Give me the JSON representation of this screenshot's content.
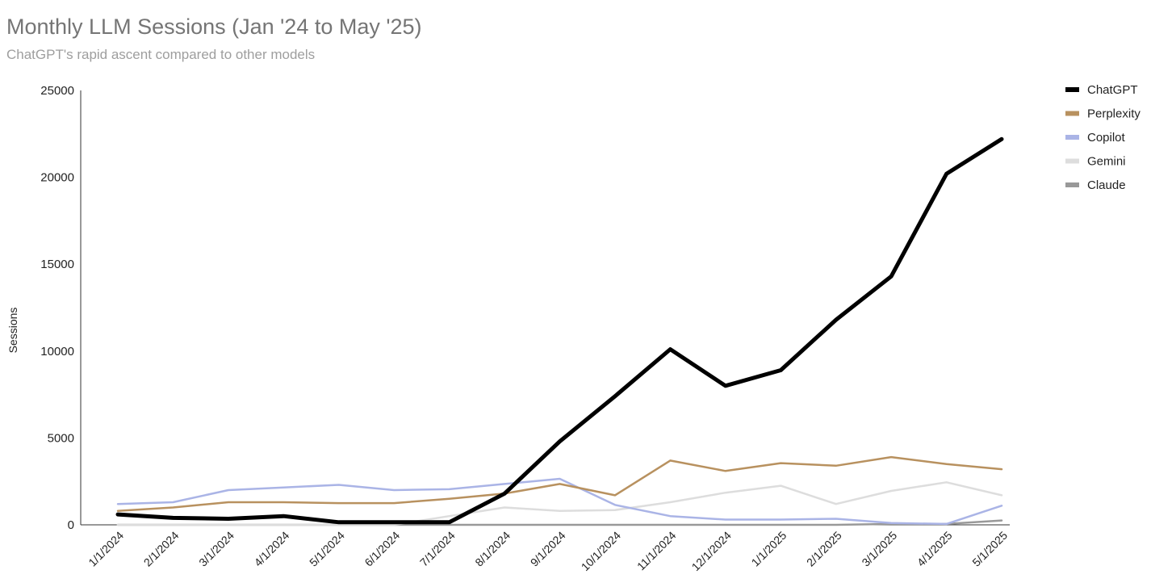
{
  "chart_data": {
    "type": "line",
    "title": "Monthly LLM Sessions (Jan '24 to May '25)",
    "subtitle": "ChatGPT's rapid ascent compared to other models",
    "xlabel": "",
    "ylabel": "Sessions",
    "ylim": [
      0,
      25000
    ],
    "yticks": [
      "0",
      "5000",
      "10000",
      "15000",
      "20000",
      "25000"
    ],
    "legend_position": "right",
    "grid": false,
    "categories": [
      "1/1/2024",
      "2/1/2024",
      "3/1/2024",
      "4/1/2024",
      "5/1/2024",
      "6/1/2024",
      "7/1/2024",
      "8/1/2024",
      "9/1/2024",
      "10/1/2024",
      "11/1/2024",
      "12/1/2024",
      "1/1/2025",
      "2/1/2025",
      "3/1/2025",
      "4/1/2025",
      "5/1/2025"
    ],
    "series": [
      {
        "name": "ChatGPT",
        "color": "#000000",
        "width": 5,
        "values": [
          600,
          400,
          350,
          500,
          150,
          150,
          150,
          1800,
          4800,
          7400,
          10100,
          8000,
          8900,
          11800,
          14300,
          20200,
          22200
        ]
      },
      {
        "name": "Perplexity",
        "color": "#b8915f",
        "width": 2.5,
        "values": [
          800,
          1000,
          1300,
          1300,
          1250,
          1250,
          1500,
          1800,
          2350,
          1700,
          3700,
          3100,
          3550,
          3400,
          3900,
          3500,
          3200
        ]
      },
      {
        "name": "Copilot",
        "color": "#aab4e6",
        "width": 2.5,
        "values": [
          1200,
          1300,
          2000,
          2150,
          2300,
          2000,
          2050,
          2350,
          2650,
          1150,
          500,
          300,
          300,
          350,
          100,
          50,
          1100
        ]
      },
      {
        "name": "Gemini",
        "color": "#dddddd",
        "width": 2.5,
        "values": [
          0,
          0,
          0,
          0,
          0,
          0,
          500,
          1000,
          800,
          850,
          1300,
          1850,
          2250,
          1200,
          1950,
          2450,
          1700
        ]
      },
      {
        "name": "Claude",
        "color": "#999999",
        "width": 2.5,
        "values": [
          0,
          0,
          0,
          0,
          0,
          0,
          0,
          0,
          0,
          0,
          0,
          0,
          0,
          0,
          50,
          50,
          250
        ]
      }
    ]
  }
}
